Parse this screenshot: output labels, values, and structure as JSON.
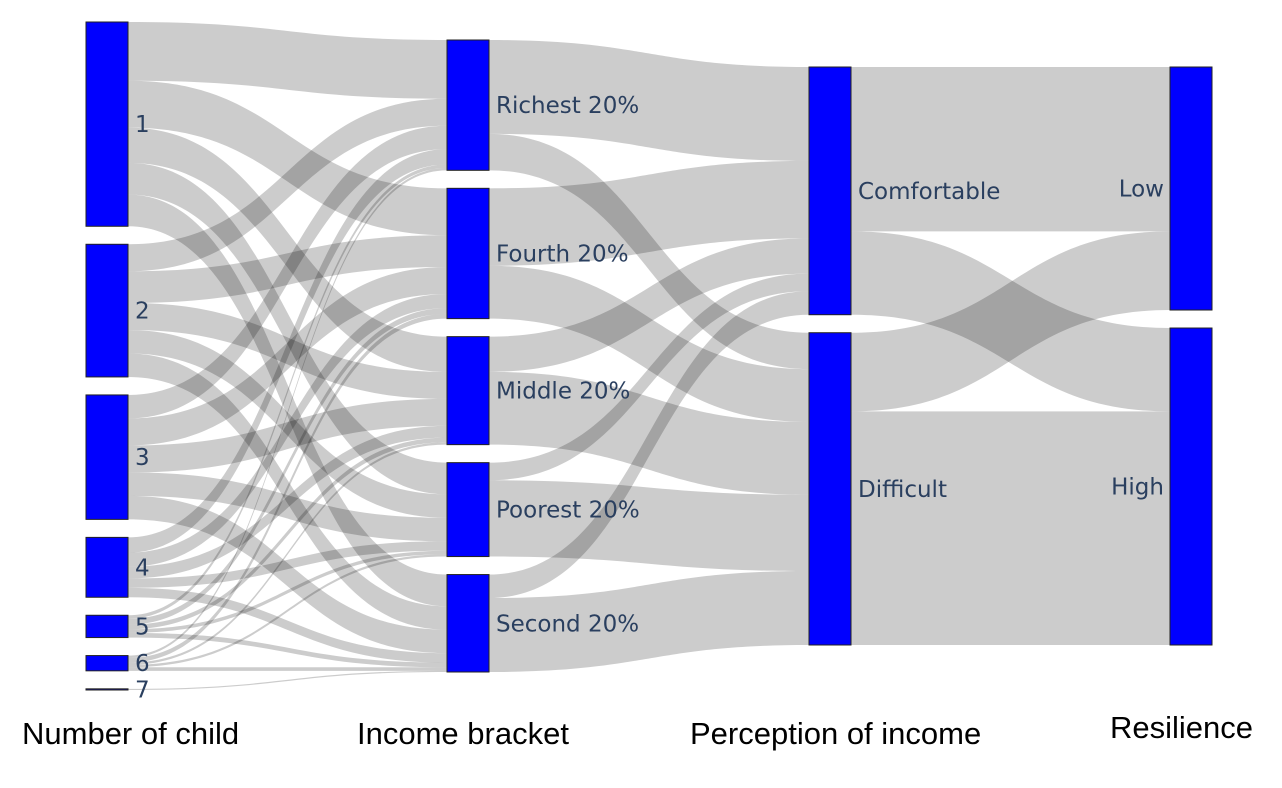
{
  "chart_data": {
    "type": "sankey",
    "stages": [
      "Number of child",
      "Income bracket",
      "Perception of income",
      "Resilience"
    ],
    "nodes": [
      {
        "id": "c1",
        "label": "1",
        "stage": 0
      },
      {
        "id": "c2",
        "label": "2",
        "stage": 0
      },
      {
        "id": "c3",
        "label": "3",
        "stage": 0
      },
      {
        "id": "c4",
        "label": "4",
        "stage": 0
      },
      {
        "id": "c5",
        "label": "5",
        "stage": 0
      },
      {
        "id": "c6",
        "label": "6",
        "stage": 0
      },
      {
        "id": "c7",
        "label": "7",
        "stage": 0
      },
      {
        "id": "rich",
        "label": "Richest 20%",
        "stage": 1
      },
      {
        "id": "fourth",
        "label": "Fourth 20%",
        "stage": 1
      },
      {
        "id": "middle",
        "label": "Middle 20%",
        "stage": 1
      },
      {
        "id": "poorest",
        "label": "Poorest 20%",
        "stage": 1
      },
      {
        "id": "second",
        "label": "Second 20%",
        "stage": 1
      },
      {
        "id": "comf",
        "label": "Comfortable",
        "stage": 2
      },
      {
        "id": "diff",
        "label": "Difficult",
        "stage": 2
      },
      {
        "id": "low",
        "label": "Low",
        "stage": 3
      },
      {
        "id": "high",
        "label": "High",
        "stage": 3
      }
    ],
    "links": [
      {
        "source": "c1",
        "target": "rich",
        "value": 50
      },
      {
        "source": "c1",
        "target": "fourth",
        "value": 40
      },
      {
        "source": "c1",
        "target": "middle",
        "value": 30
      },
      {
        "source": "c1",
        "target": "poorest",
        "value": 27
      },
      {
        "source": "c1",
        "target": "second",
        "value": 27
      },
      {
        "source": "c2",
        "target": "rich",
        "value": 23
      },
      {
        "source": "c2",
        "target": "fourth",
        "value": 27
      },
      {
        "source": "c2",
        "target": "middle",
        "value": 23
      },
      {
        "source": "c2",
        "target": "poorest",
        "value": 20
      },
      {
        "source": "c2",
        "target": "second",
        "value": 20
      },
      {
        "source": "c3",
        "target": "rich",
        "value": 20
      },
      {
        "source": "c3",
        "target": "fourth",
        "value": 23
      },
      {
        "source": "c3",
        "target": "middle",
        "value": 23
      },
      {
        "source": "c3",
        "target": "poorest",
        "value": 20
      },
      {
        "source": "c3",
        "target": "second",
        "value": 20
      },
      {
        "source": "c4",
        "target": "rich",
        "value": 13
      },
      {
        "source": "c4",
        "target": "fourth",
        "value": 12
      },
      {
        "source": "c4",
        "target": "middle",
        "value": 10
      },
      {
        "source": "c4",
        "target": "poorest",
        "value": 8
      },
      {
        "source": "c4",
        "target": "second",
        "value": 8
      },
      {
        "source": "c5",
        "target": "rich",
        "value": 3
      },
      {
        "source": "c5",
        "target": "fourth",
        "value": 5
      },
      {
        "source": "c5",
        "target": "middle",
        "value": 4
      },
      {
        "source": "c5",
        "target": "poorest",
        "value": 3
      },
      {
        "source": "c5",
        "target": "second",
        "value": 4
      },
      {
        "source": "c6",
        "target": "rich",
        "value": 2
      },
      {
        "source": "c6",
        "target": "fourth",
        "value": 4
      },
      {
        "source": "c6",
        "target": "middle",
        "value": 2
      },
      {
        "source": "c6",
        "target": "poorest",
        "value": 2
      },
      {
        "source": "c6",
        "target": "second",
        "value": 3
      },
      {
        "source": "c7",
        "target": "second",
        "value": 1
      },
      {
        "source": "rich",
        "target": "comf",
        "value": 80
      },
      {
        "source": "rich",
        "target": "diff",
        "value": 31
      },
      {
        "source": "fourth",
        "target": "comf",
        "value": 66
      },
      {
        "source": "fourth",
        "target": "diff",
        "value": 45
      },
      {
        "source": "middle",
        "target": "comf",
        "value": 30
      },
      {
        "source": "middle",
        "target": "diff",
        "value": 62
      },
      {
        "source": "poorest",
        "target": "comf",
        "value": 15
      },
      {
        "source": "poorest",
        "target": "diff",
        "value": 65
      },
      {
        "source": "second",
        "target": "comf",
        "value": 20
      },
      {
        "source": "second",
        "target": "diff",
        "value": 63
      },
      {
        "source": "comf",
        "target": "low",
        "value": 140
      },
      {
        "source": "comf",
        "target": "high",
        "value": 71
      },
      {
        "source": "diff",
        "target": "low",
        "value": 67
      },
      {
        "source": "diff",
        "target": "high",
        "value": 199
      }
    ],
    "colors": {
      "node": "#0000ff",
      "link": "#c8c8c8"
    }
  }
}
